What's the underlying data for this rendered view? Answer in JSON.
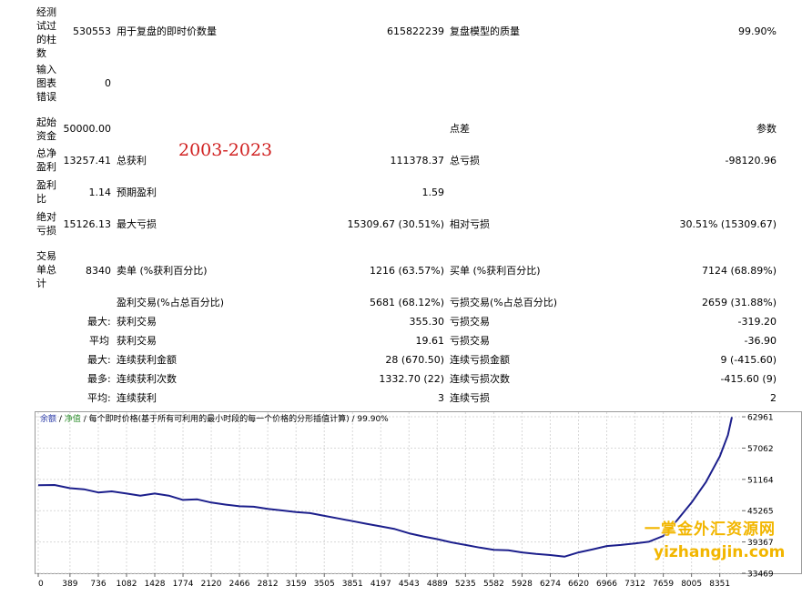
{
  "report": {
    "row1": {
      "label": "经测试过的柱数",
      "value": "530553",
      "l2": "用于复盘的即时价数量",
      "v2": "615822239",
      "l3": "复盘模型的质量",
      "v3": "99.90%"
    },
    "row2": {
      "label": "输入图表错误",
      "value": "0"
    },
    "row3": {
      "label": "起始资金",
      "value": "50000.00",
      "l3": "点差",
      "v3": "参数"
    },
    "row4": {
      "label": "总净盈利",
      "value": "13257.41",
      "l2": "总获利",
      "v2": "111378.37",
      "l3": "总亏损",
      "v3": "-98120.96"
    },
    "row5": {
      "label": "盈利比",
      "value": "1.14",
      "l2": "预期盈利",
      "v2": "1.59"
    },
    "row6": {
      "label": "绝对亏损",
      "value": "15126.13",
      "l2": "最大亏损",
      "v2": "15309.67 (30.51%)",
      "l3": "相对亏损",
      "v3": "30.51% (15309.67)"
    },
    "row7": {
      "label": "交易单总计",
      "value": "8340",
      "l2": "卖单 (%获利百分比)",
      "v2": "1216 (63.57%)",
      "l3": "买单 (%获利百分比)",
      "v3": "7124 (68.89%)"
    },
    "row8": {
      "l2": "盈利交易(%占总百分比)",
      "v2": "5681 (68.12%)",
      "l3": "亏损交易(%占总百分比)",
      "v3": "2659 (31.88%)"
    },
    "row9": {
      "prefix": "最大:",
      "l2": "获利交易",
      "v2": "355.30",
      "l3": "亏损交易",
      "v3": "-319.20"
    },
    "row10": {
      "prefix": "平均",
      "l2": "获利交易",
      "v2": "19.61",
      "l3": "亏损交易",
      "v3": "-36.90"
    },
    "row11": {
      "prefix": "最大:",
      "l2": "连续获利金额",
      "v2": "28 (670.50)",
      "l3": "连续亏损金额",
      "v3": "9 (-415.60)"
    },
    "row12": {
      "prefix": "最多:",
      "l2": "连续获利次数",
      "v2": "1332.70 (22)",
      "l3": "连续亏损次数",
      "v3": "-415.60 (9)"
    },
    "row13": {
      "prefix": "平均:",
      "l2": "连续获利",
      "v2": "3",
      "l3": "连续亏损",
      "v3": "2"
    }
  },
  "overlay": {
    "year_range": "2003-2023",
    "brand": "一掌金外汇资源网",
    "url": "yizhangjin.com"
  },
  "chart_data": {
    "type": "line",
    "caption_a": "余额",
    "caption_b": "净值",
    "caption_c": "每个即时价格(基于所有可利用的最小时段的每一个价格的分形插值计算)",
    "caption_d": "99.90%",
    "x_ticks": [
      "0",
      "389",
      "736",
      "1082",
      "1428",
      "1774",
      "2120",
      "2466",
      "2812",
      "3159",
      "3505",
      "3851",
      "4197",
      "4543",
      "4889",
      "5235",
      "5582",
      "5928",
      "6274",
      "6620",
      "6966",
      "7312",
      "7659",
      "8005",
      "8351"
    ],
    "y_ticks": [
      "62961",
      "57062",
      "51164",
      "45265",
      "39367",
      "33469"
    ],
    "xlim": [
      0,
      8600
    ],
    "ylim": [
      33469,
      64000
    ],
    "line_color": "#1c1f8c",
    "series": [
      {
        "x": [
          0,
          200,
          389,
          560,
          736,
          900,
          1082,
          1250,
          1428,
          1600,
          1774,
          1950,
          2120,
          2300,
          2466,
          2640,
          2812,
          2990,
          3159,
          3330,
          3505,
          3680,
          3851,
          4020,
          4197,
          4370,
          4543,
          4720,
          4889,
          5060,
          5235,
          5410,
          5582,
          5760,
          5928,
          6100,
          6274,
          6450,
          6620,
          6800,
          6966,
          7140,
          7312,
          7480,
          7659,
          7830,
          8005,
          8180,
          8351,
          8450,
          8500
        ],
        "y": [
          50050,
          50100,
          49500,
          49300,
          48700,
          48900,
          48500,
          48100,
          48500,
          48100,
          47300,
          47400,
          46800,
          46400,
          46100,
          46000,
          45600,
          45300,
          45000,
          44800,
          44300,
          43800,
          43300,
          42800,
          42300,
          41800,
          41000,
          40400,
          39900,
          39300,
          38800,
          38300,
          37900,
          37800,
          37400,
          37100,
          36900,
          36600,
          37400,
          38000,
          38600,
          38800,
          39100,
          39400,
          40500,
          43500,
          46800,
          50600,
          55500,
          59500,
          62900
        ]
      }
    ]
  }
}
